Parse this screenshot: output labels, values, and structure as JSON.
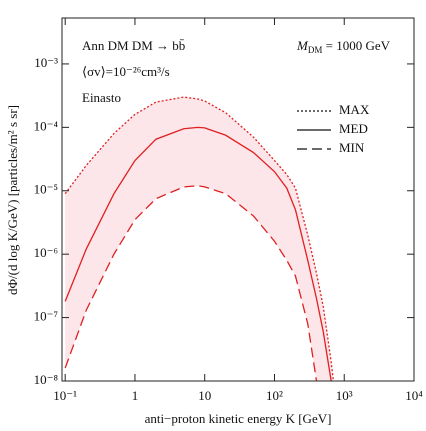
{
  "chart_data": {
    "type": "line",
    "x_label": "anti−proton kinetic energy K [GeV]",
    "y_label": "dΦ/(d log K/GeV) [particles/m² s sr]",
    "annotations": [
      "Ann DM DM → bb̄",
      "⟨σv⟩=10⁻²⁶cm³/s",
      "Einasto"
    ],
    "mass_symbol": "M",
    "mass_subscript": "DM",
    "mass_value": " = 1000 GeV",
    "log_x": true,
    "log_y": true,
    "xlim": [
      0.09,
      10000
    ],
    "ylim": [
      1e-08,
      0.0053
    ],
    "xticks": [
      {
        "value": 0.1,
        "label": "10⁻¹"
      },
      1,
      10,
      {
        "value": 100,
        "label": "10²"
      },
      {
        "value": 1000,
        "label": "10³"
      },
      {
        "value": 10000,
        "label": "10⁴"
      }
    ],
    "yticks": [
      {
        "value": 1e-08,
        "label": "10⁻⁸"
      },
      {
        "value": 1e-07,
        "label": "10⁻⁷"
      },
      {
        "value": 1e-06,
        "label": "10⁻⁶"
      },
      {
        "value": 1e-05,
        "label": "10⁻⁵"
      },
      {
        "value": 0.0001,
        "label": "10⁻⁴"
      },
      {
        "value": 0.001,
        "label": "10⁻³"
      }
    ],
    "legend_position": "upper right",
    "band_color": "#fde6ea",
    "x": [
      0.1,
      0.2,
      0.5,
      1,
      2,
      5,
      8,
      10,
      20,
      50,
      100,
      150,
      200,
      300,
      400,
      500,
      650,
      700
    ],
    "series": [
      {
        "name": "MAX",
        "color": "#e02020",
        "line_style": "dotted",
        "values": [
          9e-06,
          2.5e-05,
          8e-05,
          0.00016,
          0.00025,
          0.0003,
          0.00028,
          0.00026,
          0.00017,
          7e-05,
          3e-05,
          1.8e-05,
          1.1e-05,
          2e-06,
          5e-07,
          1.5e-07,
          2e-08,
          1e-08
        ]
      },
      {
        "name": "MED",
        "color": "#e02020",
        "line_style": "solid",
        "values": [
          1.8e-07,
          1.2e-06,
          9e-06,
          3e-05,
          6.5e-05,
          9.5e-05,
          0.0001,
          9.8e-05,
          7.5e-05,
          4e-05,
          2e-05,
          1.1e-05,
          5e-06,
          8e-07,
          2e-07,
          6e-08,
          1e-08,
          5e-09
        ]
      },
      {
        "name": "MIN",
        "color": "#e02020",
        "line_style": "dashed",
        "values": [
          1.6e-08,
          1.3e-07,
          1e-06,
          3.5e-06,
          7.5e-06,
          1.15e-05,
          1.2e-05,
          1.15e-05,
          9e-06,
          4e-06,
          1.6e-06,
          8e-07,
          4.5e-07,
          8e-08,
          1e-08,
          null,
          null,
          null
        ]
      }
    ]
  }
}
